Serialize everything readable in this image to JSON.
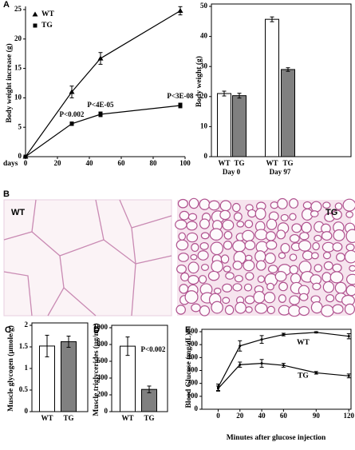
{
  "chart_data": [
    {
      "type": "line",
      "panel": "A",
      "ylabel": "Body weight increase (g)",
      "xlabel": "days",
      "xlim": [
        0,
        100
      ],
      "xticks": [
        0,
        20,
        40,
        60,
        80,
        100
      ],
      "ylim": [
        0,
        25
      ],
      "yticks": [
        0,
        5,
        10,
        15,
        20,
        25
      ],
      "legend": "upper left",
      "series": [
        {
          "name": "WT",
          "marker": "triangle",
          "color": "#000000",
          "x": [
            0,
            29,
            47,
            97
          ],
          "values": [
            0,
            11,
            16.7,
            24.8
          ],
          "errors": [
            0,
            1,
            1,
            0.7
          ]
        },
        {
          "name": "TG",
          "marker": "square",
          "color": "#000000",
          "x": [
            0,
            29,
            47,
            97
          ],
          "values": [
            0,
            5.6,
            7.2,
            8.7
          ],
          "errors": [
            0,
            0.3,
            0.4,
            0.4
          ]
        }
      ],
      "annotations": [
        "P<0.002",
        "P<4E-05",
        "P<3E-08"
      ]
    },
    {
      "type": "bar",
      "ylabel": "Body weight (g)",
      "categories": [
        "WT",
        "TG",
        "WT",
        "TG"
      ],
      "groups": [
        "Day 0",
        "Day 97"
      ],
      "values": [
        21,
        20.3,
        45.7,
        29
      ],
      "errors": [
        0.8,
        0.8,
        0.8,
        0.6
      ],
      "colors": [
        "#ffffff",
        "#808080",
        "#ffffff",
        "#808080"
      ],
      "ylim": [
        0,
        50
      ],
      "yticks": [
        0,
        10,
        20,
        30,
        40,
        50
      ]
    },
    {
      "type": "bar",
      "panel": "C",
      "ylabel": "Muscle glycogen (µmole/g)",
      "categories": [
        "WT",
        "TG"
      ],
      "values": [
        1.52,
        1.62
      ],
      "errors": [
        0.25,
        0.13
      ],
      "colors": [
        "#ffffff",
        "#808080"
      ],
      "ylim": [
        0,
        2
      ],
      "yticks": [
        0,
        0.5,
        1,
        1.5,
        2
      ]
    },
    {
      "type": "bar",
      "panel": "D",
      "ylabel": "Muscle triglycerides (µg/mg)",
      "categories": [
        "WT",
        "TG"
      ],
      "values": [
        780,
        265
      ],
      "errors": [
        110,
        40
      ],
      "colors": [
        "#ffffff",
        "#808080"
      ],
      "ylim": [
        0,
        1000
      ],
      "yticks": [
        0,
        200,
        400,
        600,
        800,
        1000
      ],
      "annotations": [
        "P<0.002"
      ]
    },
    {
      "type": "line",
      "panel": "E",
      "ylabel": "Blood Glucose (mg/dL)",
      "xlabel": "Minutes after glucose injection",
      "xlim": [
        -15,
        122
      ],
      "xticks": [
        0,
        20,
        40,
        60,
        90,
        120
      ],
      "ylim": [
        0,
        600
      ],
      "yticks": [
        0,
        100,
        200,
        300,
        400,
        500,
        600
      ],
      "legend": "inline",
      "series": [
        {
          "name": "WT",
          "marker": "dot",
          "color": "#000000",
          "x": [
            0,
            20,
            40,
            60,
            90,
            120
          ],
          "values": [
            170,
            490,
            540,
            578,
            595,
            565
          ],
          "errors": [
            25,
            40,
            30,
            10,
            5,
            20
          ]
        },
        {
          "name": "TG",
          "marker": "dot",
          "color": "#000000",
          "x": [
            0,
            20,
            40,
            60,
            90,
            120
          ],
          "values": [
            160,
            345,
            355,
            340,
            282,
            258
          ],
          "errors": [
            20,
            20,
            30,
            15,
            10,
            15
          ]
        }
      ]
    }
  ],
  "images": {
    "panel": "B",
    "left_label": "WT",
    "right_label": "TG"
  }
}
